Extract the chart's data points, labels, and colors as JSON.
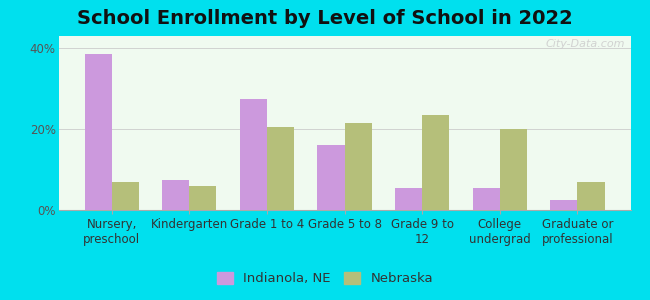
{
  "title": "School Enrollment by Level of School in 2022",
  "categories": [
    "Nursery,\npreschool",
    "Kindergarten",
    "Grade 1 to 4",
    "Grade 5 to 8",
    "Grade 9 to\n12",
    "College\nundergrad",
    "Graduate or\nprofessional"
  ],
  "indianola": [
    38.5,
    7.5,
    27.5,
    16.0,
    5.5,
    5.5,
    2.5
  ],
  "nebraska": [
    7.0,
    6.0,
    20.5,
    21.5,
    23.5,
    20.0,
    7.0
  ],
  "indianola_color": "#cc99dd",
  "nebraska_color": "#b5bf7a",
  "background_outer": "#00e0ee",
  "background_inner_top": "#f0faf0",
  "background_inner_bottom": "#ffffff",
  "ylabel_ticks": [
    "0%",
    "20%",
    "40%"
  ],
  "yticks": [
    0,
    20,
    40
  ],
  "ylim": [
    0,
    43
  ],
  "legend_labels": [
    "Indianola, NE",
    "Nebraska"
  ],
  "watermark": "City-Data.com",
  "bar_width": 0.35,
  "title_fontsize": 14,
  "tick_fontsize": 8.5,
  "legend_fontsize": 9.5
}
